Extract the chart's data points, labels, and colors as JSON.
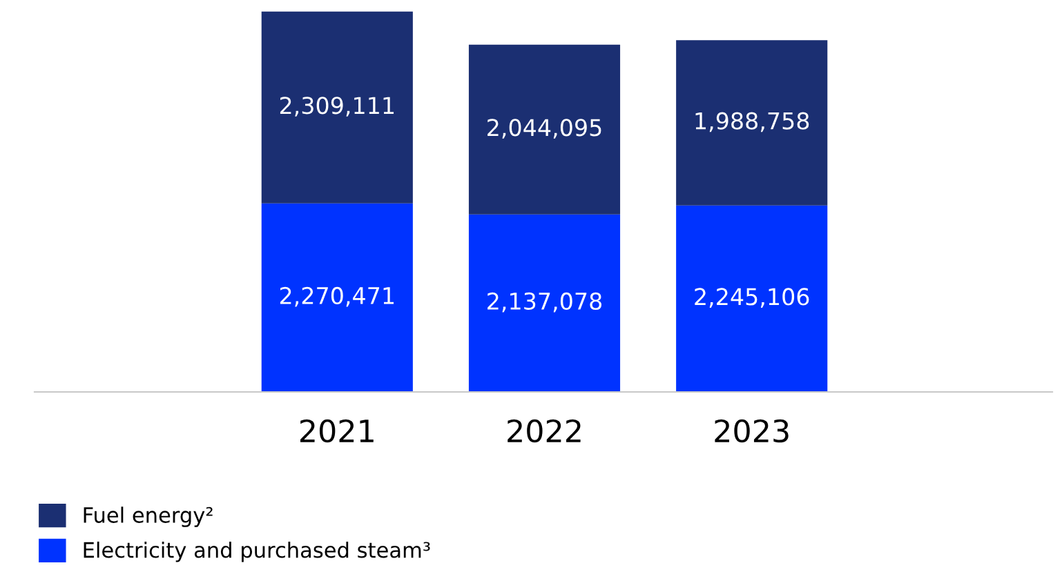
{
  "chart_data": {
    "type": "bar",
    "stacked": true,
    "categories": [
      "2021",
      "2022",
      "2023"
    ],
    "series": [
      {
        "name": "Electricity and purchased steam³",
        "color": "#0033ff",
        "values": [
          2270471,
          2137078,
          2245106
        ],
        "value_labels": [
          "2,270,471",
          "2,137,078",
          "2,245,106"
        ]
      },
      {
        "name": "Fuel energy²",
        "color": "#1b2f72",
        "values": [
          2309111,
          2044095,
          1988758
        ],
        "value_labels": [
          "2,309,111",
          "2,044,095",
          "1,988,758"
        ]
      }
    ],
    "legend": "bottom left",
    "grid": false
  }
}
